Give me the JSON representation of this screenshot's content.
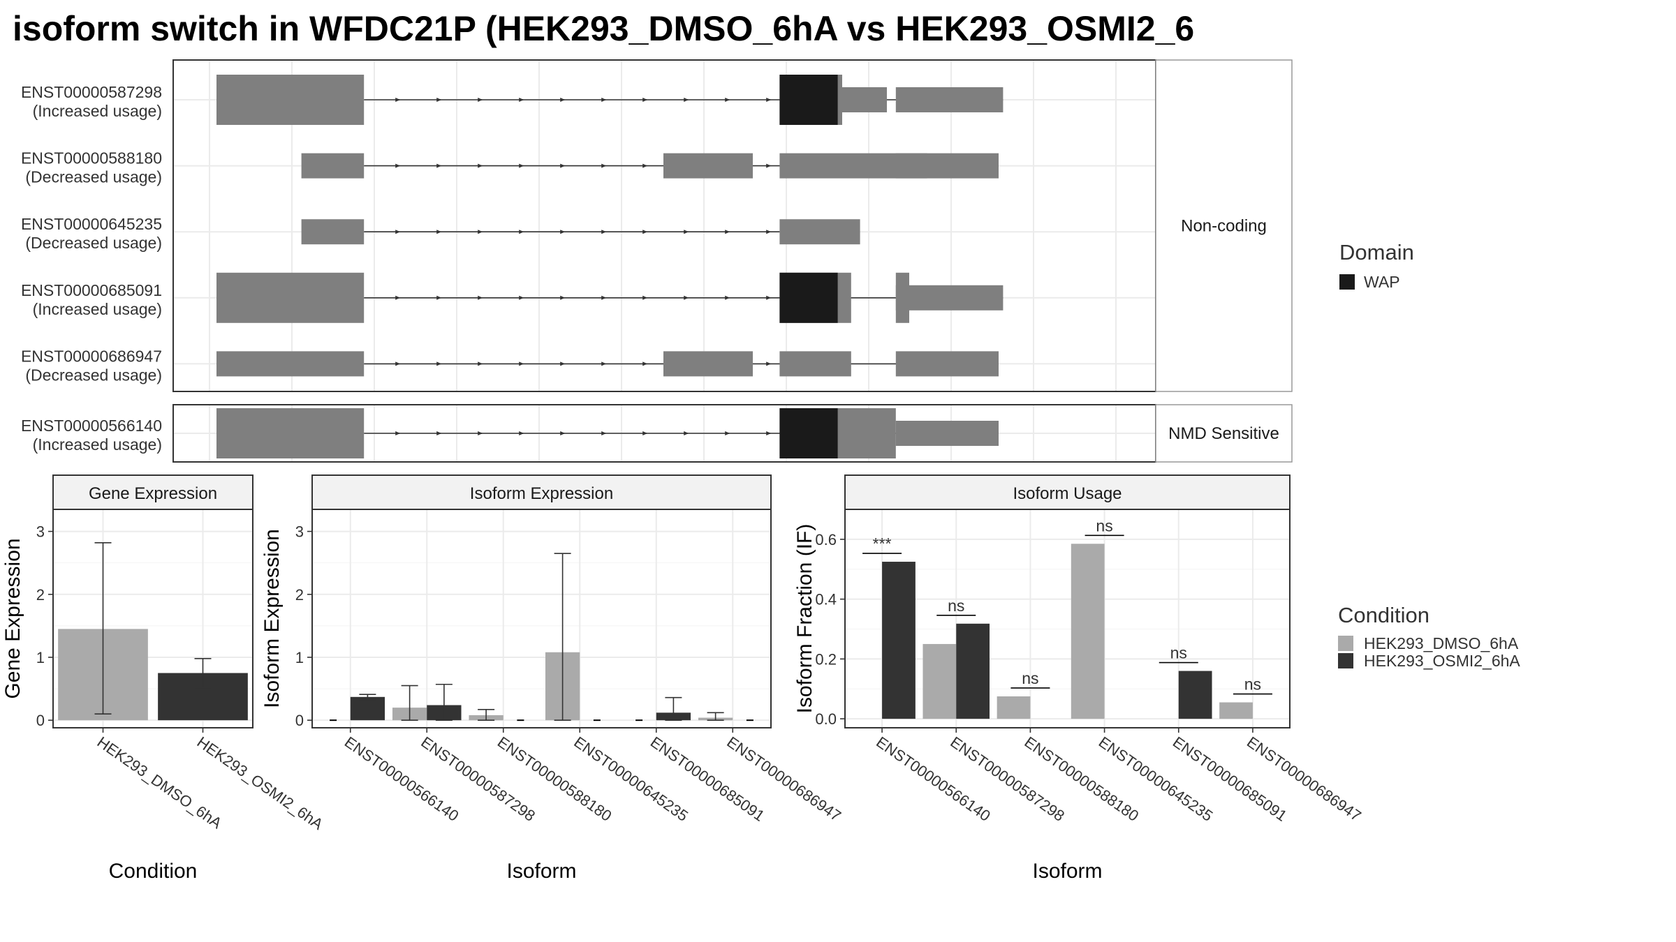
{
  "title": "isoform switch in WFDC21P (HEK293_DMSO_6hA vs HEK293_OSMI2_6",
  "colors": {
    "exon": "#7f7f7f",
    "domain": "#1a1a1a",
    "dmso": "#aaaaaa",
    "osmi": "#333333",
    "grid": "#ebebeb",
    "strip": "#f2f2f2",
    "panel_border": "#333333"
  },
  "structure": {
    "strip_noncoding": "Non-coding",
    "strip_nmd": "NMD Sensitive",
    "panels": [
      {
        "id": "noncoding",
        "transcripts": [
          {
            "id": "ENST00000587298",
            "status": "(Increased usage)",
            "exons": [
              [
                0.0,
                0.165
              ],
              [
                0.63,
                0.7
              ],
              [
                0.76,
                0.88
              ]
            ],
            "domains": [
              [
                0.63,
                0.695
              ]
            ],
            "tails": [
              [
                0.695,
                0.75,
                0.6
              ]
            ],
            "intron": [
              0.165,
              0.88
            ]
          },
          {
            "id": "ENST00000588180",
            "status": "(Decreased usage)",
            "exons": [
              [
                0.095,
                0.165
              ],
              [
                0.5,
                0.6
              ],
              [
                0.63,
                0.795
              ],
              [
                0.76,
                0.875
              ]
            ],
            "domains": [],
            "tails": [],
            "intron": [
              0.165,
              0.875
            ]
          },
          {
            "id": "ENST00000645235",
            "status": "(Decreased usage)",
            "exons": [
              [
                0.095,
                0.165
              ],
              [
                0.63,
                0.72
              ]
            ],
            "domains": [],
            "tails": [],
            "intron": [
              0.165,
              0.63
            ]
          },
          {
            "id": "ENST00000685091",
            "status": "(Increased usage)",
            "exons": [
              [
                0.0,
                0.165
              ],
              [
                0.63,
                0.71
              ],
              [
                0.76,
                0.88
              ]
            ],
            "domains": [
              [
                0.63,
                0.695
              ]
            ],
            "tails": [
              [
                0.76,
                0.775,
                1.6
              ]
            ],
            "intron": [
              0.165,
              0.88
            ]
          },
          {
            "id": "ENST00000686947",
            "status": "(Decreased usage)",
            "exons": [
              [
                0.0,
                0.165
              ],
              [
                0.5,
                0.6
              ],
              [
                0.63,
                0.71
              ],
              [
                0.76,
                0.875
              ]
            ],
            "domains": [],
            "tails": [],
            "intron": [
              0.165,
              0.875
            ]
          }
        ]
      },
      {
        "id": "nmd",
        "transcripts": [
          {
            "id": "ENST00000566140",
            "status": "(Increased usage)",
            "exons": [
              [
                0.0,
                0.165
              ],
              [
                0.63,
                0.76
              ],
              [
                0.76,
                0.875
              ]
            ],
            "domains": [
              [
                0.63,
                0.695
              ]
            ],
            "tails": [],
            "intron": [
              0.165,
              0.875
            ]
          }
        ]
      }
    ],
    "legend_title": "Domain",
    "legend_items": [
      "WAP"
    ]
  },
  "chart_data": [
    {
      "type": "bar",
      "title": "Gene Expression",
      "xlabel": "Condition",
      "ylabel": "Gene Expression",
      "categories": [
        "HEK293_DMSO_6hA",
        "HEK293_OSMI2_6hA"
      ],
      "values": [
        1.45,
        0.75
      ],
      "errors": [
        [
          0.1,
          2.82
        ],
        [
          0.52,
          0.98
        ]
      ],
      "ylim": [
        -0.12,
        3.35
      ],
      "yticks": [
        0,
        1,
        2,
        3
      ]
    },
    {
      "type": "bar",
      "title": "Isoform Expression",
      "xlabel": "Isoform",
      "ylabel": "Isoform Expression",
      "categories": [
        "ENST00000566140",
        "ENST00000587298",
        "ENST00000588180",
        "ENST00000645235",
        "ENST00000685091",
        "ENST00000686947"
      ],
      "series": [
        {
          "name": "HEK293_DMSO_6hA",
          "values": [
            0.0,
            0.2,
            0.08,
            1.08,
            0.0,
            0.04
          ],
          "errors": [
            null,
            [
              0.0,
              0.55
            ],
            [
              0.0,
              0.17
            ],
            [
              0.0,
              2.65
            ],
            null,
            [
              0.0,
              0.12
            ]
          ]
        },
        {
          "name": "HEK293_OSMI2_6hA",
          "values": [
            0.37,
            0.24,
            0.0,
            0.0,
            0.12,
            0.0
          ],
          "errors": [
            [
              0.33,
              0.41
            ],
            [
              0.0,
              0.57
            ],
            null,
            null,
            [
              0.0,
              0.36
            ],
            null
          ]
        }
      ],
      "ylim": [
        -0.12,
        3.35
      ],
      "yticks": [
        0,
        1,
        2,
        3
      ]
    },
    {
      "type": "bar",
      "title": "Isoform Usage",
      "xlabel": "Isoform",
      "ylabel": "Isoform Fraction (IF)",
      "categories": [
        "ENST00000566140",
        "ENST00000587298",
        "ENST00000588180",
        "ENST00000645235",
        "ENST00000685091",
        "ENST00000686947"
      ],
      "series": [
        {
          "name": "HEK293_DMSO_6hA",
          "values": [
            0.0,
            0.25,
            0.075,
            0.585,
            0.0,
            0.055
          ]
        },
        {
          "name": "HEK293_OSMI2_6hA",
          "values": [
            0.525,
            0.318,
            0.0,
            0.0,
            0.16,
            0.0
          ]
        }
      ],
      "significance": [
        "***",
        "ns",
        "ns",
        "ns",
        "ns",
        "ns"
      ],
      "ylim": [
        -0.03,
        0.7
      ],
      "yticks": [
        0.0,
        0.2,
        0.4,
        0.6
      ],
      "ytick_labels": [
        "0.0",
        "0.2",
        "0.4",
        "0.6"
      ]
    }
  ],
  "condition_legend": {
    "title": "Condition",
    "items": [
      "HEK293_DMSO_6hA",
      "HEK293_OSMI2_6hA"
    ]
  }
}
